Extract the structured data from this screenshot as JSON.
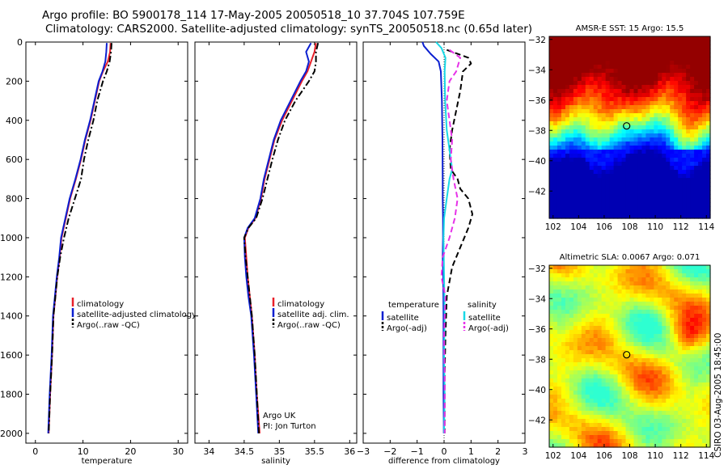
{
  "title_line1": "Argo profile: BO 5900178_114 17-May-2005 20050518_10 37.704S 107.759E",
  "title_line2": "Climatology: CARS2000. Satellite-adjusted climatology: synTS_20050518.nc (0.65d later)",
  "side_text": "CSIRO 03-Aug-2005 18:45:00",
  "colors": {
    "red": "#e8202a",
    "blue": "#0b1fd0",
    "black": "#000000",
    "cyan": "#19d8e6",
    "magenta": "#e632e8"
  },
  "chart_data": [
    {
      "type": "line",
      "xlabel": "temperature",
      "xlim": [
        -2,
        32
      ],
      "xticks": [
        0,
        10,
        20,
        30
      ],
      "ylim": [
        2050,
        0
      ],
      "yticks": [
        0,
        200,
        400,
        600,
        800,
        1000,
        1200,
        1400,
        1600,
        1800,
        2000
      ],
      "legend": [
        "climatology",
        "satellite-adjusted climatology",
        "Argo(..raw -QC)"
      ],
      "series": [
        {
          "name": "climatology",
          "color": "red",
          "style": "solid",
          "x": [
            15.8,
            15.7,
            15.2,
            14.2,
            13.4,
            12.5,
            11.6,
            10.5,
            9.6,
            8.5,
            7.3,
            6.4,
            5.5,
            5.1,
            4.6,
            4.2,
            3.8,
            3.5,
            3.1,
            2.8
          ],
          "y": [
            5,
            50,
            100,
            150,
            200,
            300,
            400,
            500,
            600,
            700,
            800,
            900,
            1000,
            1100,
            1200,
            1300,
            1400,
            1600,
            1800,
            2000
          ]
        },
        {
          "name": "satellite-adjusted climatology",
          "color": "blue",
          "style": "solid",
          "x": [
            15.0,
            14.9,
            14.7,
            14.1,
            13.3,
            12.4,
            11.5,
            10.4,
            9.5,
            8.4,
            7.2,
            6.3,
            5.4,
            5.0,
            4.5,
            4.1,
            3.7,
            3.4,
            3.0,
            2.7
          ],
          "y": [
            5,
            50,
            100,
            150,
            200,
            300,
            400,
            500,
            600,
            700,
            800,
            900,
            1000,
            1100,
            1200,
            1300,
            1400,
            1600,
            1800,
            2000
          ]
        },
        {
          "name": "Argo(..raw -QC)",
          "color": "black",
          "style": "dashdot",
          "x": [
            16.0,
            15.9,
            15.6,
            15.0,
            14.2,
            13.0,
            12.2,
            11.1,
            10.2,
            9.6,
            8.3,
            7.0,
            6.0,
            5.2,
            4.6,
            4.2,
            3.8,
            3.5,
            3.1,
            2.8
          ],
          "y": [
            5,
            50,
            100,
            150,
            200,
            300,
            400,
            500,
            600,
            700,
            800,
            900,
            1000,
            1100,
            1200,
            1300,
            1400,
            1600,
            1800,
            2000
          ]
        }
      ]
    },
    {
      "type": "line",
      "xlabel": "salinity",
      "xlim": [
        33.8,
        36.1
      ],
      "xticks": [
        34,
        34.5,
        35,
        35.5,
        36
      ],
      "ylim": [
        2050,
        0
      ],
      "yticks": [
        0,
        200,
        400,
        600,
        800,
        1000,
        1200,
        1400,
        1600,
        1800,
        2000
      ],
      "legend": [
        "climatology",
        "satellite adj. clim.",
        "Argo(..raw -QC)"
      ],
      "annotation": [
        "Argo UK",
        "PI: Jon Turton"
      ],
      "series": [
        {
          "name": "climatology",
          "color": "red",
          "style": "solid",
          "x": [
            35.52,
            35.5,
            35.45,
            35.4,
            35.32,
            35.18,
            35.04,
            34.93,
            34.86,
            34.79,
            34.74,
            34.66,
            34.56,
            34.51,
            34.53,
            34.55,
            34.58,
            34.61,
            34.65,
            34.68,
            34.72
          ],
          "y": [
            5,
            50,
            100,
            150,
            200,
            300,
            400,
            500,
            600,
            700,
            800,
            900,
            950,
            1000,
            1100,
            1200,
            1300,
            1400,
            1600,
            1800,
            2000
          ]
        },
        {
          "name": "satellite adj. clim.",
          "color": "blue",
          "style": "solid",
          "x": [
            35.45,
            35.38,
            35.42,
            35.38,
            35.3,
            35.16,
            35.02,
            34.92,
            34.85,
            34.78,
            34.73,
            34.65,
            34.55,
            34.5,
            34.51,
            34.53,
            34.56,
            34.6,
            34.64,
            34.67,
            34.7
          ],
          "y": [
            5,
            50,
            100,
            150,
            200,
            300,
            400,
            500,
            600,
            700,
            800,
            900,
            950,
            1000,
            1100,
            1200,
            1300,
            1400,
            1600,
            1800,
            2000
          ]
        },
        {
          "name": "Argo(..raw -QC)",
          "color": "black",
          "style": "dashdot",
          "x": [
            35.55,
            35.52,
            35.52,
            35.5,
            35.42,
            35.23,
            35.08,
            34.98,
            34.9,
            34.83,
            34.76,
            34.67,
            34.56,
            34.5,
            34.52,
            34.55,
            34.58,
            34.61,
            34.65,
            34.68,
            34.71
          ],
          "y": [
            5,
            50,
            100,
            150,
            200,
            300,
            400,
            500,
            600,
            700,
            800,
            900,
            950,
            1000,
            1100,
            1200,
            1300,
            1400,
            1600,
            1800,
            2000
          ]
        }
      ]
    },
    {
      "type": "line",
      "xlabel": "difference from climatology",
      "xlim": [
        -3,
        3
      ],
      "xticks": [
        -3,
        -2,
        -1,
        0,
        1,
        2,
        3
      ],
      "ylim": [
        2050,
        0
      ],
      "yticks": [
        0,
        200,
        400,
        600,
        800,
        1000,
        1200,
        1400,
        1600,
        1800,
        2000
      ],
      "legend_left_title": "temperature",
      "legend_left": [
        "satellite",
        "Argo(-adj)"
      ],
      "legend_right_title": "salinity",
      "legend_right": [
        "satellite",
        "Argo(-adj)"
      ],
      "series": [
        {
          "name": "satellite",
          "group": "temperature",
          "color": "blue",
          "style": "solid",
          "x": [
            -0.8,
            -0.75,
            -0.5,
            -0.2,
            -0.12,
            -0.08,
            -0.06,
            -0.05,
            -0.05,
            -0.04,
            -0.04,
            -0.05,
            -0.03,
            -0.02,
            -0.02,
            -0.02,
            -0.01,
            -0.01
          ],
          "y": [
            0,
            20,
            60,
            100,
            150,
            300,
            500,
            700,
            800,
            900,
            1000,
            1100,
            1200,
            1400,
            1600,
            1800,
            1950,
            2000
          ]
        },
        {
          "name": "Argo(-adj)",
          "group": "temperature",
          "color": "black",
          "style": "dashed",
          "x": [
            0.1,
            0.9,
            1.0,
            0.7,
            0.6,
            0.45,
            0.3,
            0.2,
            0.25,
            0.5,
            0.6,
            0.9,
            1.05,
            0.9,
            0.6,
            0.3,
            0.1,
            0.05,
            0.02,
            0.02,
            0.02
          ],
          "y": [
            40,
            80,
            110,
            150,
            250,
            350,
            450,
            550,
            650,
            700,
            750,
            800,
            880,
            950,
            1050,
            1150,
            1300,
            1500,
            1700,
            1900,
            2000
          ]
        },
        {
          "name": "satellite",
          "group": "salinity",
          "color": "cyan",
          "style": "solid",
          "x": [
            -0.3,
            -0.1,
            0.05,
            0.02,
            0.04,
            0.1,
            0.2,
            0.3,
            0.2,
            0.1,
            0.0,
            -0.02,
            0.0,
            0.02,
            0.0,
            0.02,
            0.0
          ],
          "y": [
            0,
            30,
            80,
            150,
            300,
            450,
            550,
            650,
            700,
            800,
            900,
            1000,
            1200,
            1400,
            1600,
            1800,
            2000
          ]
        },
        {
          "name": "Argo(-adj)",
          "group": "salinity",
          "color": "magenta",
          "style": "dashed",
          "x": [
            0.2,
            0.6,
            0.45,
            0.2,
            0.1,
            0.2,
            0.3,
            0.25,
            0.35,
            0.5,
            0.4,
            0.2,
            -0.05,
            -0.1,
            0.05,
            0.0,
            0.02,
            0.02,
            0.02
          ],
          "y": [
            40,
            80,
            150,
            200,
            300,
            400,
            500,
            600,
            700,
            800,
            900,
            1000,
            1100,
            1200,
            1300,
            1500,
            1700,
            1900,
            2000
          ]
        }
      ]
    },
    {
      "type": "heatmap",
      "title": "AMSR-E SST: 15 Argo: 15.5",
      "xlim": [
        101.7,
        114.3
      ],
      "xticks": [
        102,
        104,
        106,
        108,
        110,
        112,
        114
      ],
      "ylim": [
        -43.8,
        -31.8
      ],
      "yticks": [
        -32,
        -34,
        -36,
        -38,
        -40,
        -42
      ],
      "marker": {
        "lon": 107.759,
        "lat": -37.704
      }
    },
    {
      "type": "heatmap",
      "title": "Altimetric SLA: 0.0067 Argo: 0.071",
      "xlim": [
        101.7,
        114.3
      ],
      "xticks": [
        102,
        104,
        106,
        108,
        110,
        112,
        114
      ],
      "ylim": [
        -43.8,
        -31.8
      ],
      "yticks": [
        -32,
        -34,
        -36,
        -38,
        -40,
        -42
      ],
      "marker": {
        "lon": 107.759,
        "lat": -37.704
      }
    }
  ]
}
